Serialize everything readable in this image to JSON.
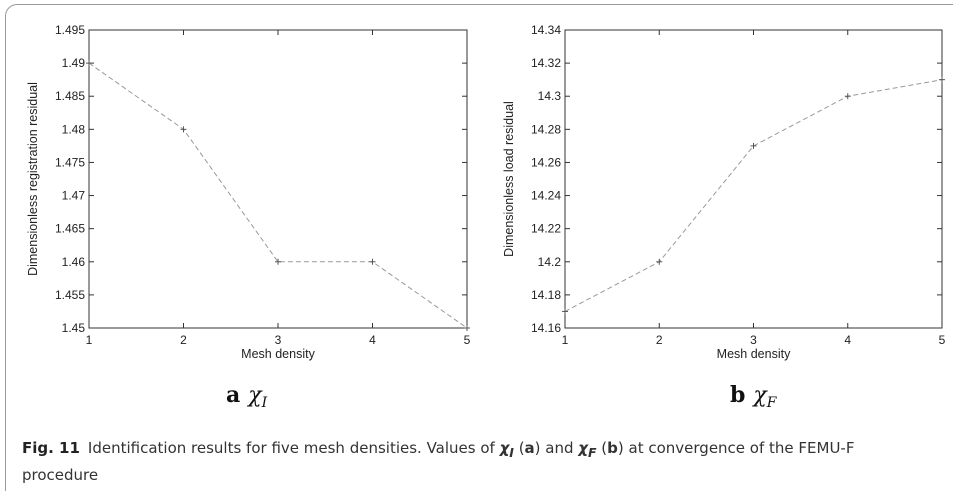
{
  "chart_data": [
    {
      "type": "line",
      "x": [
        1,
        2,
        3,
        4,
        5
      ],
      "values": [
        1.49,
        1.48,
        1.46,
        1.46,
        1.45
      ],
      "xlabel": "Mesh density",
      "ylabel": "Dimensionless registration residual",
      "xlim": [
        1,
        5
      ],
      "ylim": [
        1.45,
        1.495
      ],
      "xticks": [
        "1",
        "2",
        "3",
        "4",
        "5"
      ],
      "yticks": [
        "1.45",
        "1.455",
        "1.46",
        "1.465",
        "1.47",
        "1.475",
        "1.48",
        "1.485",
        "1.49",
        "1.495"
      ],
      "line_style": "dashed",
      "line_color": "#9a9a9a",
      "marker": "+",
      "subfigure_letter": "a",
      "subfigure_symbol": "χ",
      "subfigure_subscript": "I"
    },
    {
      "type": "line",
      "x": [
        1,
        2,
        3,
        4,
        5
      ],
      "values": [
        14.17,
        14.2,
        14.27,
        14.3,
        14.31
      ],
      "xlabel": "Mesh density",
      "ylabel": "Dimensionless load residual",
      "xlim": [
        1,
        5
      ],
      "ylim": [
        14.16,
        14.34
      ],
      "xticks": [
        "1",
        "2",
        "3",
        "4",
        "5"
      ],
      "yticks": [
        "14.16",
        "14.18",
        "14.2",
        "14.22",
        "14.24",
        "14.26",
        "14.28",
        "14.3",
        "14.32",
        "14.34"
      ],
      "line_style": "dashed",
      "line_color": "#9a9a9a",
      "marker": "+",
      "subfigure_letter": "b",
      "subfigure_symbol": "χ",
      "subfigure_subscript": "F"
    }
  ],
  "caption": {
    "fig_label": "Fig. 11",
    "text_1": "Identification results for five mesh densities. Values of ",
    "chi": "χ",
    "sub_I": "I",
    "paren_a_open": " (",
    "letter_a": "a",
    "paren_a_close": ") and ",
    "sub_F": "F",
    "paren_b_open": " (",
    "letter_b": "b",
    "text_2": ") at convergence of the FEMU-F procedure"
  }
}
